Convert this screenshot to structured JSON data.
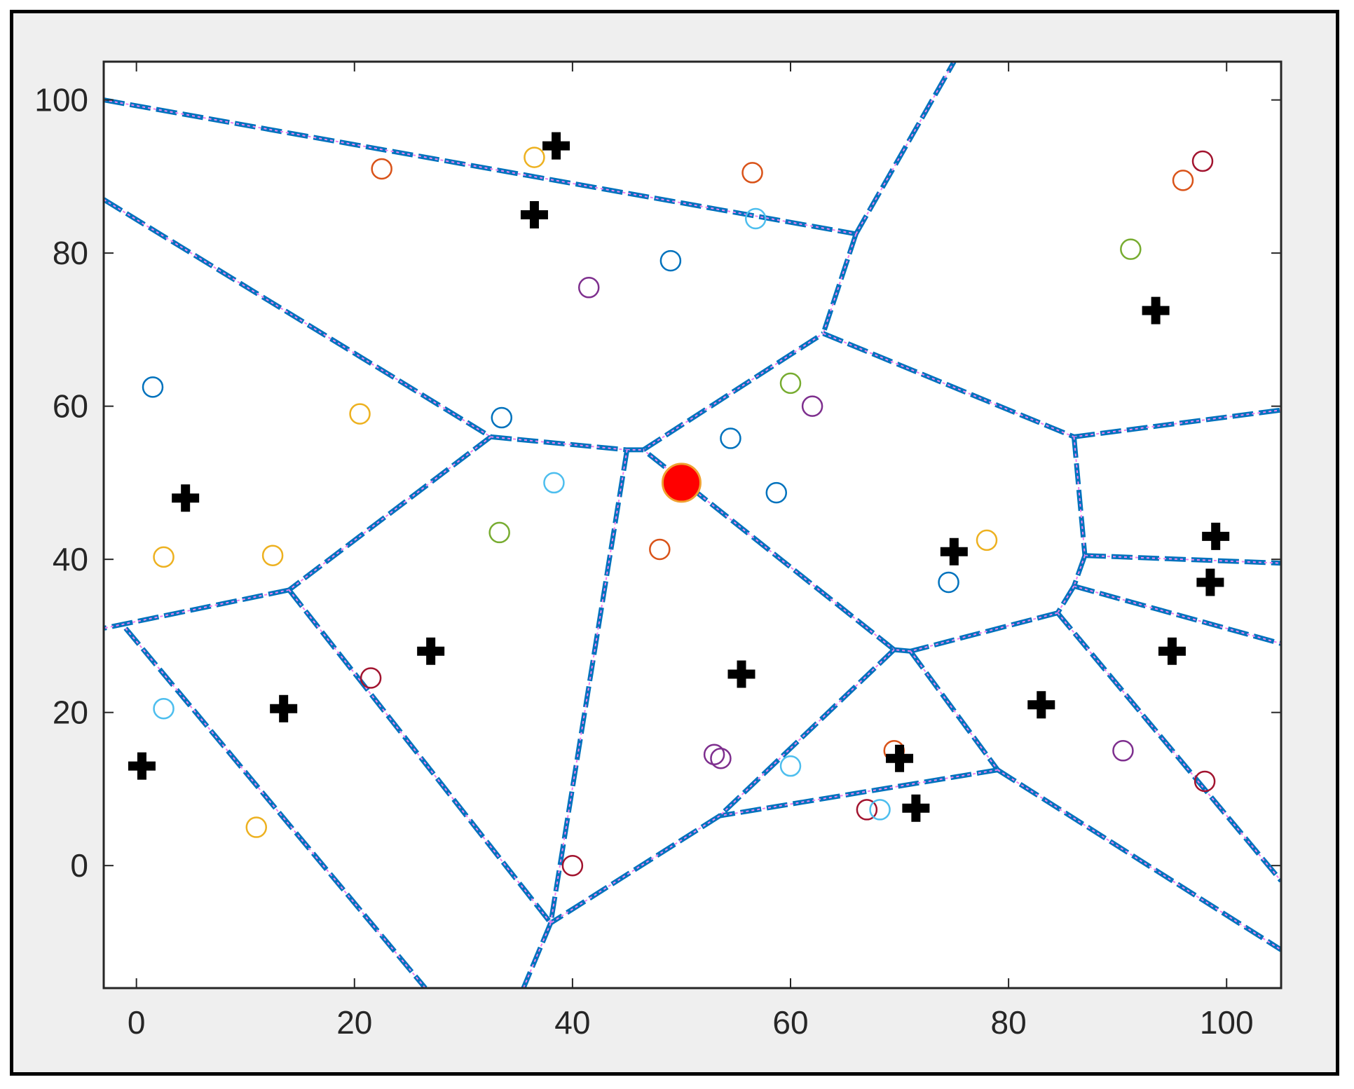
{
  "chart_data": {
    "type": "scatter",
    "title": "",
    "xlabel": "",
    "ylabel": "",
    "xlim": [
      -3,
      105
    ],
    "ylim": [
      -16,
      105
    ],
    "xticks": [
      "0",
      "20",
      "40",
      "60",
      "80",
      "100"
    ],
    "yticks": [
      "0",
      "20",
      "40",
      "60",
      "80",
      "100"
    ],
    "grid": false,
    "colors": {
      "edge": "#0072bd",
      "edge_dash": "#ee82ee",
      "site": "#000000",
      "center": "#ff0000",
      "center_edge": "#f0a030",
      "axis": "#262626"
    },
    "center_point": {
      "x": 50,
      "y": 50
    },
    "sites": [
      {
        "x": 38.5,
        "y": 94
      },
      {
        "x": 36.5,
        "y": 85
      },
      {
        "x": 93.5,
        "y": 72.5
      },
      {
        "x": 4.5,
        "y": 48
      },
      {
        "x": 75,
        "y": 41
      },
      {
        "x": 99,
        "y": 43
      },
      {
        "x": 98.5,
        "y": 37
      },
      {
        "x": 27,
        "y": 28
      },
      {
        "x": 55.5,
        "y": 25
      },
      {
        "x": 95,
        "y": 28
      },
      {
        "x": 13.5,
        "y": 20.5
      },
      {
        "x": 83,
        "y": 21
      },
      {
        "x": 0.5,
        "y": 13
      },
      {
        "x": 70,
        "y": 14
      },
      {
        "x": 71.5,
        "y": 7.5
      }
    ],
    "samples": [
      {
        "x": 22.5,
        "y": 91,
        "color": "#d95319"
      },
      {
        "x": 36.5,
        "y": 92.5,
        "color": "#edb120"
      },
      {
        "x": 56.5,
        "y": 90.5,
        "color": "#d95319"
      },
      {
        "x": 56.8,
        "y": 84.5,
        "color": "#4dbeee"
      },
      {
        "x": 49,
        "y": 79,
        "color": "#0072bd"
      },
      {
        "x": 41.5,
        "y": 75.5,
        "color": "#7e2f8e"
      },
      {
        "x": 96,
        "y": 89.5,
        "color": "#d95319"
      },
      {
        "x": 97.8,
        "y": 92,
        "color": "#a2142f"
      },
      {
        "x": 91.2,
        "y": 80.5,
        "color": "#77ac30"
      },
      {
        "x": 1.5,
        "y": 62.5,
        "color": "#0072bd"
      },
      {
        "x": 20.5,
        "y": 59,
        "color": "#edb120"
      },
      {
        "x": 33.5,
        "y": 58.5,
        "color": "#0072bd"
      },
      {
        "x": 60,
        "y": 63,
        "color": "#77ac30"
      },
      {
        "x": 62,
        "y": 60,
        "color": "#7e2f8e"
      },
      {
        "x": 54.5,
        "y": 55.8,
        "color": "#0072bd"
      },
      {
        "x": 38.3,
        "y": 50,
        "color": "#4dbeee"
      },
      {
        "x": 58.7,
        "y": 48.7,
        "color": "#0072bd"
      },
      {
        "x": 33.3,
        "y": 43.5,
        "color": "#77ac30"
      },
      {
        "x": 2.5,
        "y": 40.3,
        "color": "#edb120"
      },
      {
        "x": 12.5,
        "y": 40.5,
        "color": "#edb120"
      },
      {
        "x": 48,
        "y": 41.3,
        "color": "#d95319"
      },
      {
        "x": 78,
        "y": 42.5,
        "color": "#edb120"
      },
      {
        "x": 74.5,
        "y": 37,
        "color": "#0072bd"
      },
      {
        "x": 21.5,
        "y": 24.5,
        "color": "#a2142f"
      },
      {
        "x": 2.5,
        "y": 20.5,
        "color": "#4dbeee"
      },
      {
        "x": 53,
        "y": 14.5,
        "color": "#7e2f8e"
      },
      {
        "x": 53.6,
        "y": 14,
        "color": "#7e2f8e"
      },
      {
        "x": 60,
        "y": 13,
        "color": "#4dbeee"
      },
      {
        "x": 69.5,
        "y": 15,
        "color": "#d95319"
      },
      {
        "x": 67,
        "y": 7.3,
        "color": "#a2142f"
      },
      {
        "x": 68.2,
        "y": 7.3,
        "color": "#4dbeee"
      },
      {
        "x": 90.5,
        "y": 15,
        "color": "#7e2f8e"
      },
      {
        "x": 98,
        "y": 11,
        "color": "#a2142f"
      },
      {
        "x": 11,
        "y": 5,
        "color": "#edb120"
      },
      {
        "x": 40,
        "y": 0,
        "color": "#a2142f"
      }
    ],
    "edges": [
      [
        [
          -3,
          100
        ],
        [
          66,
          82.5
        ]
      ],
      [
        [
          66,
          82.5
        ],
        [
          75,
          105
        ]
      ],
      [
        [
          66,
          82.5
        ],
        [
          63,
          69.5
        ]
      ],
      [
        [
          -3,
          87
        ],
        [
          32.5,
          56
        ]
      ],
      [
        [
          32.5,
          56
        ],
        [
          45,
          54.3
        ]
      ],
      [
        [
          45,
          54.3
        ],
        [
          46.5,
          54.3
        ]
      ],
      [
        [
          46.5,
          54.3
        ],
        [
          63,
          69.5
        ]
      ],
      [
        [
          63,
          69.5
        ],
        [
          86,
          56
        ]
      ],
      [
        [
          86,
          56
        ],
        [
          105,
          59.5
        ]
      ],
      [
        [
          86,
          56
        ],
        [
          87,
          40.5
        ]
      ],
      [
        [
          87,
          40.5
        ],
        [
          105,
          39.5
        ]
      ],
      [
        [
          87,
          40.5
        ],
        [
          86,
          36.5
        ]
      ],
      [
        [
          86,
          36.5
        ],
        [
          105,
          29
        ]
      ],
      [
        [
          86,
          36.5
        ],
        [
          84.5,
          33
        ]
      ],
      [
        [
          84.5,
          33
        ],
        [
          105,
          -2
        ]
      ],
      [
        [
          84.5,
          33
        ],
        [
          71,
          28
        ]
      ],
      [
        [
          71,
          28
        ],
        [
          69.5,
          28.2
        ]
      ],
      [
        [
          69.5,
          28.2
        ],
        [
          46.5,
          54.3
        ]
      ],
      [
        [
          71,
          28
        ],
        [
          79,
          12.5
        ]
      ],
      [
        [
          79,
          12.5
        ],
        [
          105,
          -11
        ]
      ],
      [
        [
          79,
          12.5
        ],
        [
          53.5,
          6.5
        ]
      ],
      [
        [
          69.5,
          28.2
        ],
        [
          53.5,
          6.5
        ]
      ],
      [
        [
          53.5,
          6.5
        ],
        [
          38,
          -7.5
        ]
      ],
      [
        [
          45,
          54.3
        ],
        [
          38,
          -7.5
        ]
      ],
      [
        [
          38,
          -7.5
        ],
        [
          35.5,
          -16
        ]
      ],
      [
        [
          32.5,
          56
        ],
        [
          14,
          36
        ]
      ],
      [
        [
          14,
          36
        ],
        [
          -3,
          31
        ]
      ],
      [
        [
          14,
          36
        ],
        [
          38,
          -7.5
        ]
      ],
      [
        [
          -1,
          31
        ],
        [
          26.5,
          -16
        ]
      ]
    ]
  }
}
